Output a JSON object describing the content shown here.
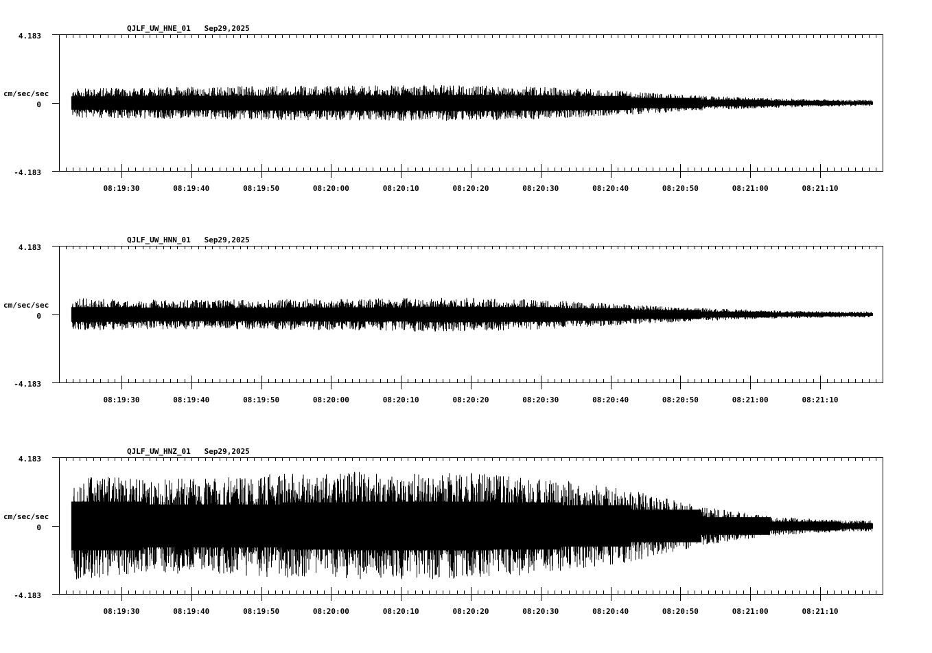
{
  "chart_data": [
    {
      "type": "line",
      "title": "QJLF_UW_HNE_01   Sep29,2025",
      "station": "QJLF_UW_HNE_01",
      "date": "Sep29,2025",
      "ylabel": "cm/sec/sec",
      "ylim": [
        -4.183,
        4.183
      ],
      "yticks": [
        "4.183",
        "0",
        "-4.183"
      ],
      "xticks": [
        "08:19:30",
        "08:19:40",
        "08:19:50",
        "08:20:00",
        "08:20:10",
        "08:20:20",
        "08:20:30",
        "08:20:40",
        "08:20:50",
        "08:21:00",
        "08:21:10"
      ],
      "xrange": [
        "08:19:21",
        "08:21:19"
      ],
      "envelope_note": "approximate peak amplitude (cm/sec/sec) per 10 s segment, starting 08:19:23",
      "envelope": [
        0.9,
        0.95,
        1.0,
        1.05,
        1.05,
        1.1,
        1.05,
        0.95,
        0.7,
        0.45,
        0.3,
        0.2
      ],
      "seed": 11
    },
    {
      "type": "line",
      "title": "QJLF_UW_HNN_01   Sep29,2025",
      "station": "QJLF_UW_HNN_01",
      "date": "Sep29,2025",
      "ylabel": "cm/sec/sec",
      "ylim": [
        -4.183,
        4.183
      ],
      "yticks": [
        "4.183",
        "0",
        "-4.183"
      ],
      "xticks": [
        "08:19:30",
        "08:19:40",
        "08:19:50",
        "08:20:00",
        "08:20:10",
        "08:20:20",
        "08:20:30",
        "08:20:40",
        "08:20:50",
        "08:21:00",
        "08:21:10"
      ],
      "xrange": [
        "08:19:21",
        "08:21:19"
      ],
      "envelope_note": "approximate peak amplitude (cm/sec/sec) per 10 s segment, starting 08:19:23",
      "envelope": [
        1.0,
        0.9,
        0.9,
        0.95,
        0.95,
        1.05,
        1.0,
        0.85,
        0.6,
        0.4,
        0.25,
        0.18
      ],
      "seed": 23
    },
    {
      "type": "line",
      "title": "QJLF_UW_HNZ_01   Sep29,2025",
      "station": "QJLF_UW_HNZ_01",
      "date": "Sep29,2025",
      "ylabel": "cm/sec/sec",
      "ylim": [
        -4.183,
        4.183
      ],
      "yticks": [
        "4.183",
        "0",
        "-4.183"
      ],
      "xticks": [
        "08:19:30",
        "08:19:40",
        "08:19:50",
        "08:20:00",
        "08:20:10",
        "08:20:20",
        "08:20:30",
        "08:20:40",
        "08:20:50",
        "08:21:00",
        "08:21:10"
      ],
      "xrange": [
        "08:19:21",
        "08:21:19"
      ],
      "envelope_note": "approximate peak amplitude (cm/sec/sec) per 10 s segment, starting 08:19:23",
      "envelope": [
        3.3,
        2.9,
        2.9,
        3.2,
        3.3,
        3.3,
        3.2,
        2.8,
        2.2,
        1.2,
        0.6,
        0.35
      ],
      "seed": 37
    }
  ]
}
